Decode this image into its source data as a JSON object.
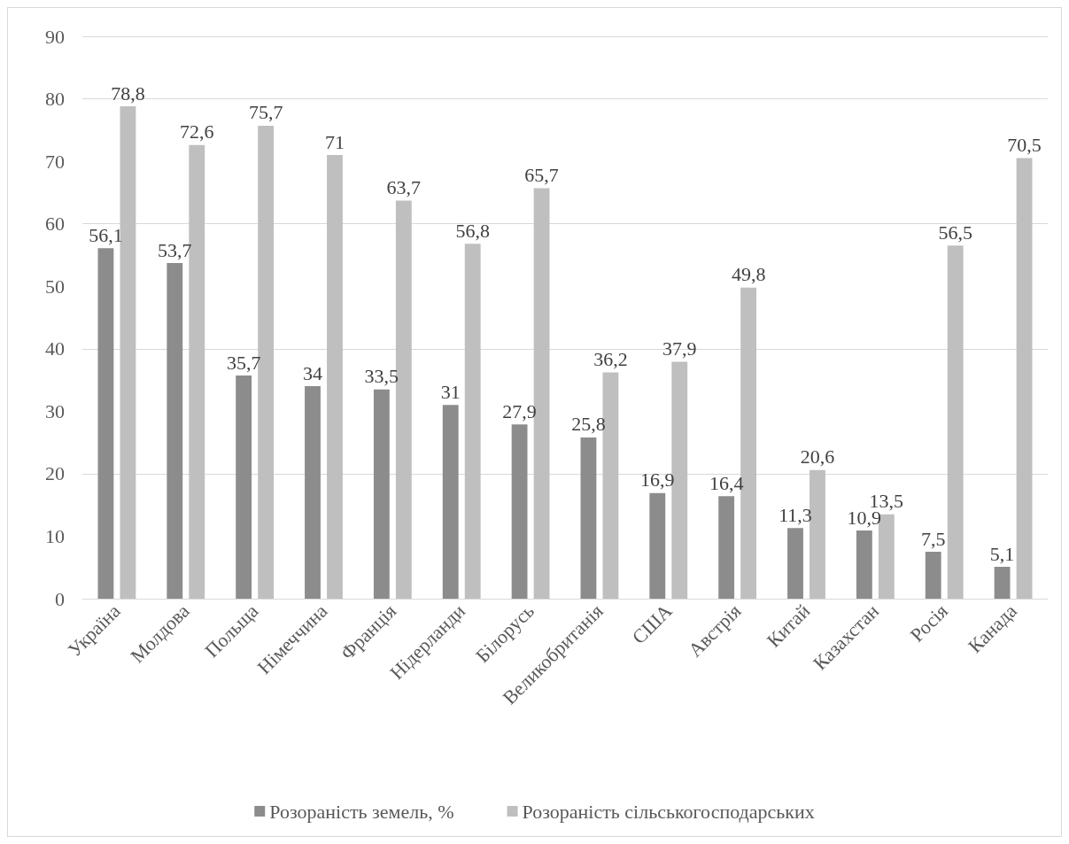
{
  "chart_data": {
    "type": "bar",
    "categories": [
      "Україна",
      "Молдова",
      "Польща",
      "Німеччина",
      "Франція",
      "Нідерланди",
      "Білорусь",
      "Великобританія",
      "США",
      "Австрія",
      "Китай",
      "Казахстан",
      "Росія",
      "Канада"
    ],
    "series": [
      {
        "name": "Розораність земель, %",
        "color": "#8c8c8c",
        "values": [
          56.1,
          53.7,
          35.7,
          34,
          33.5,
          31,
          27.9,
          25.8,
          16.9,
          16.4,
          11.3,
          10.9,
          7.5,
          5.1
        ],
        "value_labels": [
          "56,1",
          "53,7",
          "35,7",
          "34",
          "33,5",
          "31",
          "27,9",
          "25,8",
          "16,9",
          "16,4",
          "11,3",
          "10,9",
          "7,5",
          "5,1"
        ]
      },
      {
        "name": "Розораність сільськогосподарських",
        "color": "#bfbfbf",
        "values": [
          78.8,
          72.6,
          75.7,
          71,
          63.7,
          56.8,
          65.7,
          36.2,
          37.9,
          49.8,
          20.6,
          13.5,
          56.5,
          70.5
        ],
        "value_labels": [
          "78,8",
          "72,6",
          "75,7",
          "71",
          "63,7",
          "56,8",
          "65,7",
          "36,2",
          "37,9",
          "49,8",
          "20,6",
          "13,5",
          "56,5",
          "70,5"
        ]
      }
    ],
    "ylim": [
      0,
      90
    ],
    "yticks": [
      0,
      10,
      20,
      30,
      40,
      50,
      60,
      70,
      80,
      90
    ],
    "grid": "y",
    "legend": "bottom"
  }
}
